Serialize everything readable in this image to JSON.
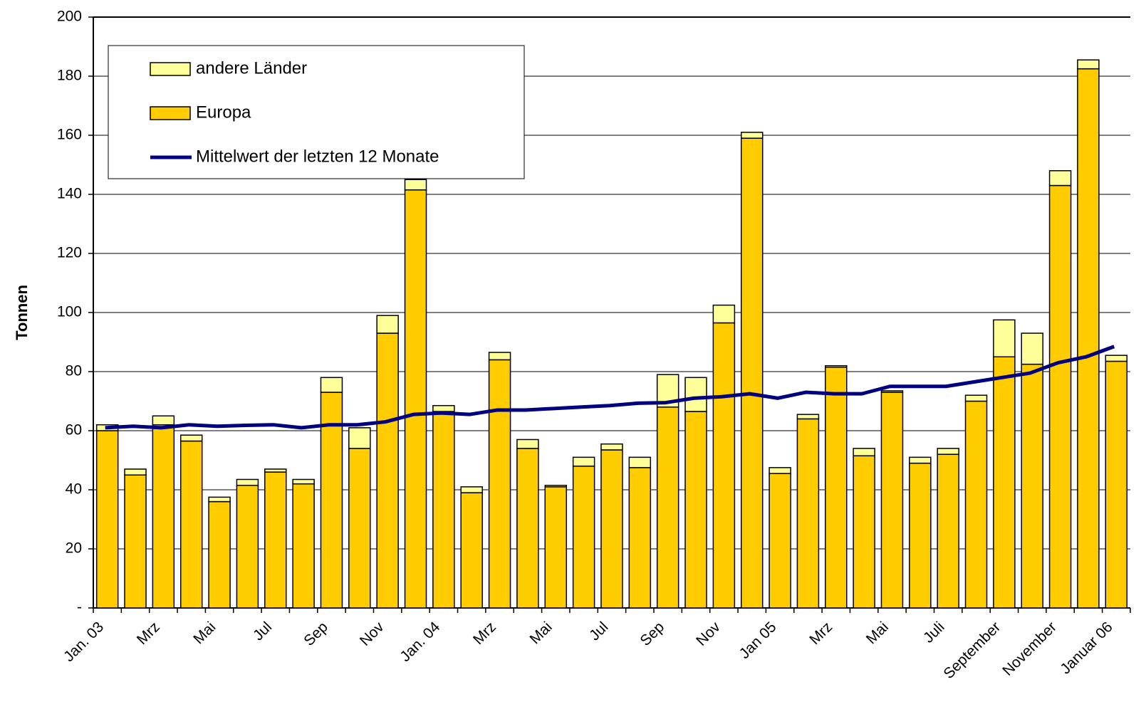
{
  "chart_data": {
    "type": "bar",
    "stacked": true,
    "y_label": "Tonnen",
    "categories": [
      "Jan. 03",
      null,
      "Mrz",
      null,
      "Mai",
      null,
      "Jul",
      null,
      "Sep",
      null,
      "Nov",
      null,
      "Jan. 04",
      null,
      "Mrz",
      null,
      "Mai",
      null,
      "Jul",
      null,
      "Sep",
      null,
      "Nov",
      null,
      "Jan 05",
      null,
      "Mrz",
      null,
      "Mai",
      null,
      "Juli",
      null,
      "September",
      null,
      "November",
      null,
      "Januar 06"
    ],
    "series": [
      {
        "name": "Europa",
        "type": "bar",
        "color": "#ffcc00",
        "values": [
          60,
          45,
          62,
          56.5,
          36,
          41.5,
          46,
          42,
          73,
          54,
          93,
          141.5,
          66.5,
          39,
          84,
          54,
          41,
          48,
          53.5,
          47.5,
          68,
          66.5,
          96.5,
          159,
          45.5,
          64,
          81.5,
          51.5,
          73,
          49,
          52,
          70,
          85,
          82.5,
          143,
          182.5,
          83.5
        ]
      },
      {
        "name": "andere Länder",
        "type": "bar",
        "color": "#ffff99",
        "values": [
          2,
          2,
          3,
          2,
          1.5,
          2,
          1,
          1.5,
          5,
          7,
          6,
          3.5,
          2,
          2,
          2.5,
          3,
          0.5,
          3,
          2,
          3.5,
          11,
          11.5,
          6,
          2,
          2,
          1.5,
          0.5,
          2.5,
          0.5,
          2,
          2,
          2,
          12.5,
          10.5,
          5,
          3,
          2
        ]
      },
      {
        "name": "Mittelwert der letzten 12 Monate",
        "type": "line",
        "color": "#000080",
        "values": [
          61,
          61.5,
          61,
          62,
          61.5,
          61.8,
          62,
          61,
          62,
          62,
          63,
          65.5,
          66,
          65.5,
          67,
          67,
          67.5,
          68,
          68.5,
          69.3,
          69.5,
          71,
          71.5,
          72.5,
          71,
          73,
          72.5,
          72.5,
          75,
          75,
          75,
          76.5,
          78,
          79.5,
          83,
          85,
          88.5
        ]
      }
    ],
    "ylim": [
      0,
      200
    ],
    "yticks": [
      {
        "value": 0,
        "label": "-"
      },
      20,
      40,
      60,
      80,
      100,
      120,
      140,
      160,
      180,
      200
    ],
    "grid": true,
    "legend": "top-left"
  }
}
